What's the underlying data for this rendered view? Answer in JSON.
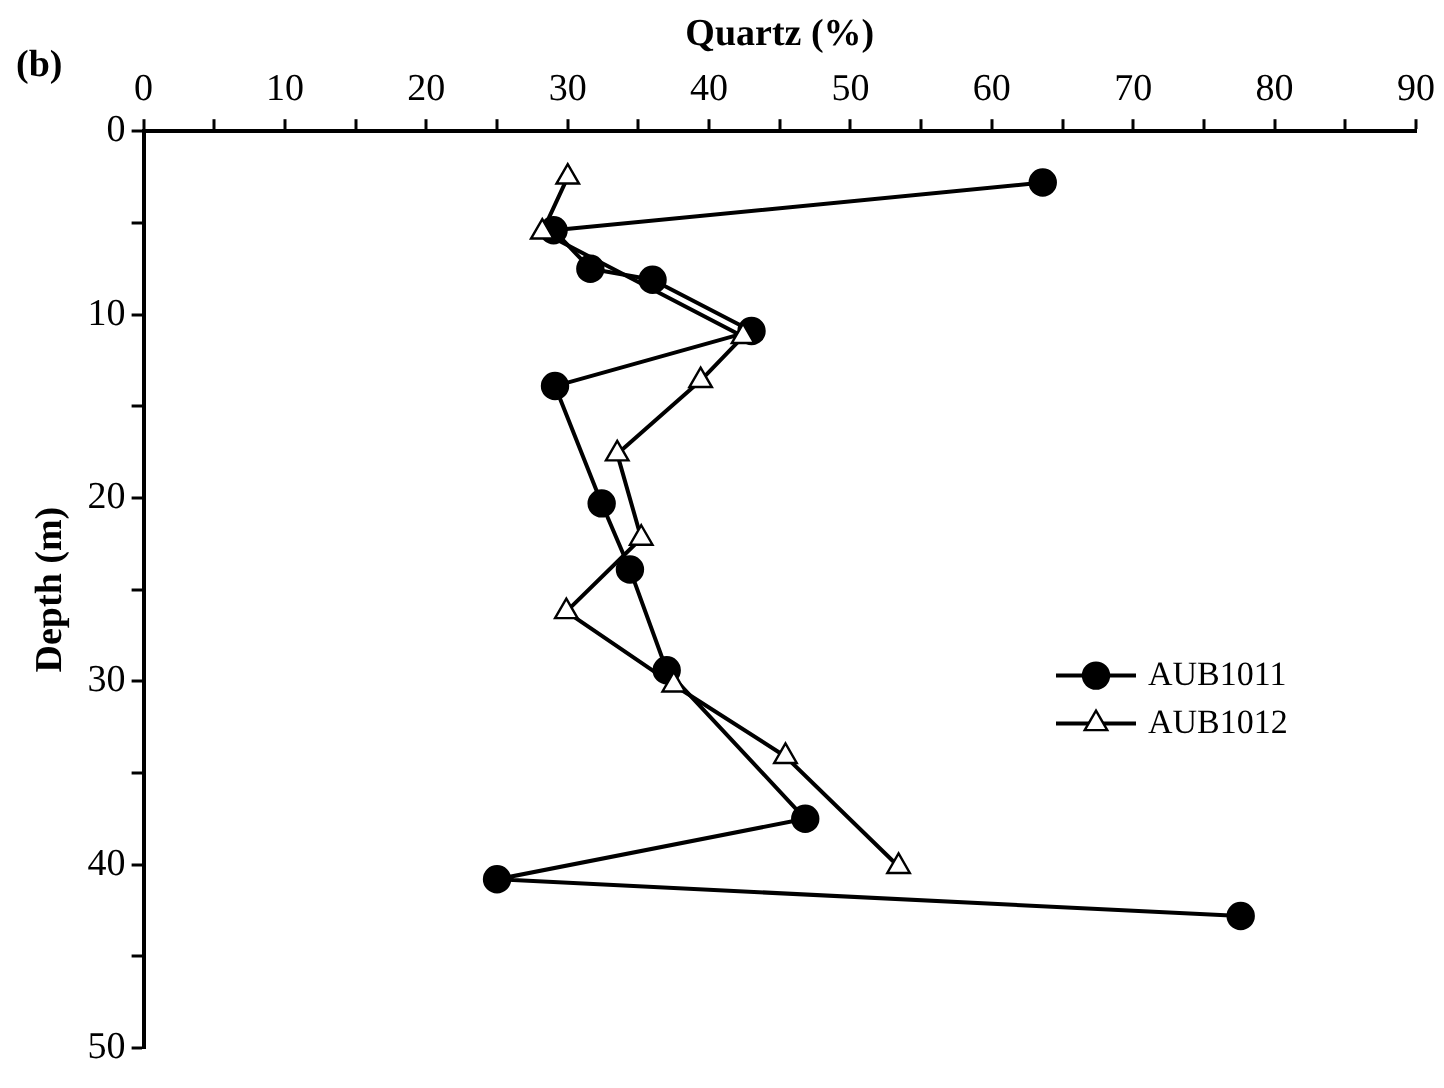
{
  "chart_data": {
    "type": "line",
    "xlabel": "Quartz (%)",
    "ylabel": "Depth (m)",
    "annotations": [
      "(b)"
    ],
    "xlim": [
      0,
      90
    ],
    "xticks": [
      0,
      {
        "value": 5,
        "label": null
      },
      10,
      {
        "value": 15,
        "label": null
      },
      20,
      {
        "value": 25,
        "label": null
      },
      30,
      {
        "value": 35,
        "label": null
      },
      40,
      {
        "value": 45,
        "label": null
      },
      50,
      {
        "value": 55,
        "label": null
      },
      60,
      {
        "value": 65,
        "label": null
      },
      70,
      {
        "value": 75,
        "label": null
      },
      80,
      {
        "value": 85,
        "label": null
      },
      90
    ],
    "ylim": [
      50,
      0
    ],
    "yticks": [
      0,
      {
        "value": 5,
        "label": null
      },
      10,
      {
        "value": 15,
        "label": null
      },
      20,
      {
        "value": 25,
        "label": null
      },
      30,
      {
        "value": 35,
        "label": null
      },
      40,
      {
        "value": 45,
        "label": null
      },
      50
    ],
    "grid": false,
    "legend": "right",
    "line_style": "solid",
    "series": [
      {
        "name": "AUB1011",
        "color": "#000000",
        "marker": "circle",
        "x": [
          63.6,
          29.0,
          31.6,
          36.0,
          43.0,
          29.1,
          32.4,
          34.4,
          37.0,
          46.8,
          25.0,
          77.6
        ],
        "values": [
          2.8,
          5.4,
          7.5,
          8.1,
          10.9,
          13.9,
          20.3,
          23.9,
          29.4,
          37.5,
          40.8,
          42.8
        ]
      },
      {
        "name": "AUB1012",
        "color": "#000000",
        "marker": "triangle",
        "x": [
          30.0,
          28.2,
          42.4,
          39.4,
          33.5,
          35.2,
          29.9,
          37.5,
          45.4,
          53.4
        ],
        "values": [
          2.5,
          5.5,
          11.2,
          13.6,
          17.6,
          22.2,
          26.2,
          30.2,
          34.1,
          40.1
        ]
      }
    ]
  }
}
